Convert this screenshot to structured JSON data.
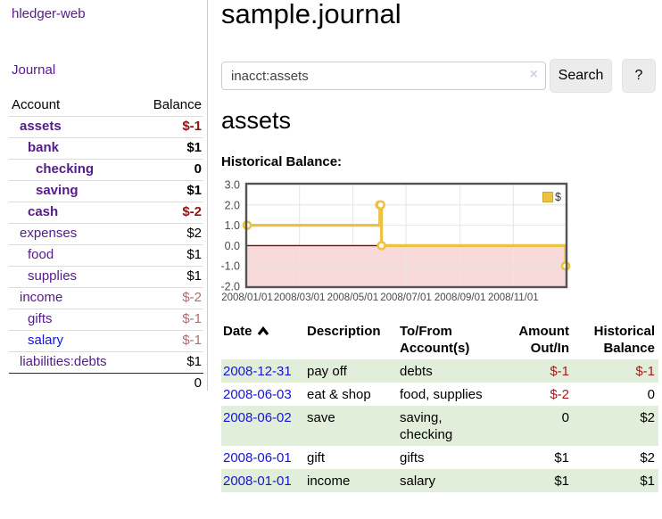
{
  "sidebar": {
    "app_title": "hledger-web",
    "journal_link": "Journal",
    "table": {
      "account_header": "Account",
      "balance_header": "Balance",
      "total": "0",
      "accounts": [
        {
          "name": "assets",
          "depth": 1,
          "bold": true,
          "link_color": "purple",
          "balance": "$-1",
          "balance_style": "neg-bold"
        },
        {
          "name": "bank",
          "depth": 2,
          "bold": true,
          "link_color": "purple",
          "balance": "$1",
          "balance_style": "bold"
        },
        {
          "name": "checking",
          "depth": 3,
          "bold": true,
          "link_color": "purple",
          "balance": "0",
          "balance_style": "bold"
        },
        {
          "name": "saving",
          "depth": 3,
          "bold": true,
          "link_color": "purple",
          "balance": "$1",
          "balance_style": "bold"
        },
        {
          "name": "cash",
          "depth": 2,
          "bold": true,
          "link_color": "purple",
          "balance": "$-2",
          "balance_style": "neg-bold"
        },
        {
          "name": "expenses",
          "depth": 1,
          "bold": false,
          "link_color": "purple",
          "balance": "$2",
          "balance_style": "plain"
        },
        {
          "name": "food",
          "depth": 2,
          "bold": false,
          "link_color": "purple",
          "balance": "$1",
          "balance_style": "plain"
        },
        {
          "name": "supplies",
          "depth": 2,
          "bold": false,
          "link_color": "purple",
          "balance": "$1",
          "balance_style": "plain"
        },
        {
          "name": "income",
          "depth": 1,
          "bold": false,
          "link_color": "purple",
          "balance": "$-2",
          "balance_style": "neg-light"
        },
        {
          "name": "gifts",
          "depth": 2,
          "bold": false,
          "link_color": "purple",
          "balance": "$-1",
          "balance_style": "neg-light"
        },
        {
          "name": "salary",
          "depth": 2,
          "bold": false,
          "link_color": "blue",
          "balance": "$-1",
          "balance_style": "neg-light"
        },
        {
          "name": "liabilities:debts",
          "depth": 1,
          "bold": false,
          "link_color": "purple",
          "balance": "$1",
          "balance_style": "plain"
        }
      ]
    }
  },
  "main": {
    "title": "sample.journal",
    "search": {
      "value": "inacct:assets",
      "clear_icon": "×",
      "button_label": "Search",
      "help_label": "?"
    },
    "account_heading": "assets",
    "chart_label": "Historical Balance:"
  },
  "register": {
    "columns": [
      {
        "label": "Date",
        "sort": "asc",
        "align": "left"
      },
      {
        "label": "Description",
        "align": "left"
      },
      {
        "label": "To/From Account(s)",
        "align": "left"
      },
      {
        "label": "Amount Out/In",
        "align": "right"
      },
      {
        "label": "Historical Balance",
        "align": "right"
      }
    ],
    "rows": [
      {
        "date": "2008-12-31",
        "description": "pay off",
        "accounts": "debts",
        "amount": "$-1",
        "amount_negative": true,
        "balance": "$-1",
        "balance_negative": true
      },
      {
        "date": "2008-06-03",
        "description": "eat & shop",
        "accounts": "food, supplies",
        "amount": "$-2",
        "amount_negative": true,
        "balance": "0",
        "balance_negative": false
      },
      {
        "date": "2008-06-02",
        "description": "save",
        "accounts": "saving, checking",
        "amount": "0",
        "amount_negative": false,
        "balance": "$2",
        "balance_negative": false
      },
      {
        "date": "2008-06-01",
        "description": "gift",
        "accounts": "gifts",
        "amount": "$1",
        "amount_negative": false,
        "balance": "$2",
        "balance_negative": false
      },
      {
        "date": "2008-01-01",
        "description": "income",
        "accounts": "salary",
        "amount": "$1",
        "amount_negative": false,
        "balance": "$1",
        "balance_negative": false
      }
    ]
  },
  "chart_data": {
    "type": "line",
    "step": true,
    "title": "Historical Balance:",
    "xlabel": "",
    "ylabel": "",
    "x_range": [
      "2008-01-01",
      "2008-12-31"
    ],
    "ylim": [
      -2,
      3
    ],
    "y_ticks": [
      3.0,
      2.0,
      1.0,
      0.0,
      -1.0,
      -2.0
    ],
    "x_tick_labels": [
      "2008/01/01",
      "2008/03/01",
      "2008/05/01",
      "2008/07/01",
      "2008/09/01",
      "2008/11/01"
    ],
    "x_tick_dates": [
      "2008-01-01",
      "2008-03-01",
      "2008-05-01",
      "2008-07-01",
      "2008-09-01",
      "2008-11-01"
    ],
    "series": [
      {
        "name": "$",
        "color": "#EDC240",
        "points": [
          [
            "2008-01-01",
            1
          ],
          [
            "2008-06-01",
            2
          ],
          [
            "2008-06-02",
            2
          ],
          [
            "2008-06-03",
            0
          ],
          [
            "2008-12-31",
            -1
          ]
        ]
      }
    ],
    "legend_position": "top-right",
    "grid": true,
    "negative_region_below_zero": true,
    "colors": {
      "grid": "#e6e6e6",
      "border": "#545454",
      "zero_line": "#8b0000",
      "negative_region": "#f9dada",
      "tick_label": "#4a4a4a",
      "marker_fill": "#ffffff"
    }
  }
}
